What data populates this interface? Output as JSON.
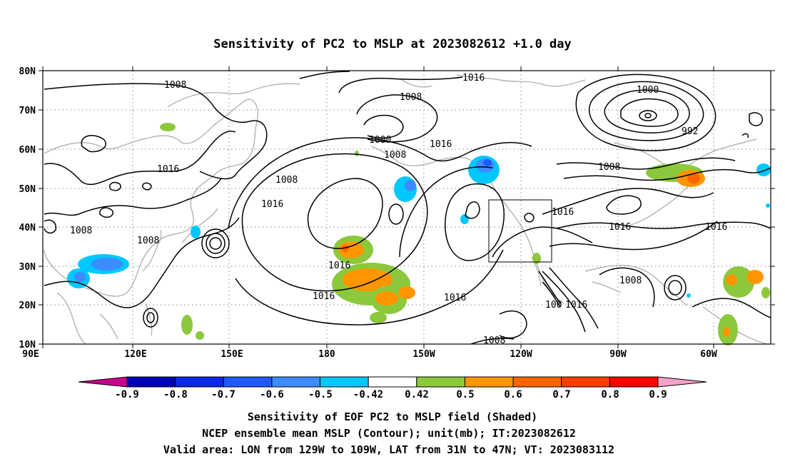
{
  "title": "Sensitivity of PC2 to MSLP at 2023082612 +1.0 day",
  "map": {
    "lat_ticks": [
      "80N",
      "70N",
      "60N",
      "50N",
      "40N",
      "30N",
      "20N",
      "10N"
    ],
    "lon_ticks": [
      "90E",
      "120E",
      "150E",
      "180",
      "150W",
      "120W",
      "90W",
      "60W"
    ],
    "contour_labels": [
      "1008",
      "1008",
      "1016",
      "1008",
      "1016",
      "1016",
      "1008",
      "1008",
      "1000",
      "1008",
      "1016",
      "1016",
      "1000",
      "992",
      "1008",
      "1016",
      "1016",
      "1016",
      "1016",
      "1008",
      "1016",
      "1008",
      "100"
    ]
  },
  "colorbar": {
    "labels": [
      "-0.9",
      "-0.8",
      "-0.7",
      "-0.6",
      "-0.5",
      "-0.42",
      "0.42",
      "0.5",
      "0.6",
      "0.7",
      "0.8",
      "0.9"
    ],
    "colors": [
      "#0000b4",
      "#0a28e6",
      "#1e5aff",
      "#3c8cff",
      "#00c8ff",
      "#ffffff",
      "#8cc83c",
      "#ff9600",
      "#ff6400",
      "#ff3c00",
      "#ff0000"
    ],
    "end_low": "#c8008c",
    "end_high": "#f5a0c8"
  },
  "footer": {
    "line1": "Sensitivity of EOF PC2 to MSLP field (Shaded)",
    "line2": "NCEP ensemble mean MSLP (Contour); unit(mb); IT:2023082612",
    "line3": "Valid area: LON from 129W to 109W, LAT from 31N to 47N; VT: 2023083112"
  }
}
